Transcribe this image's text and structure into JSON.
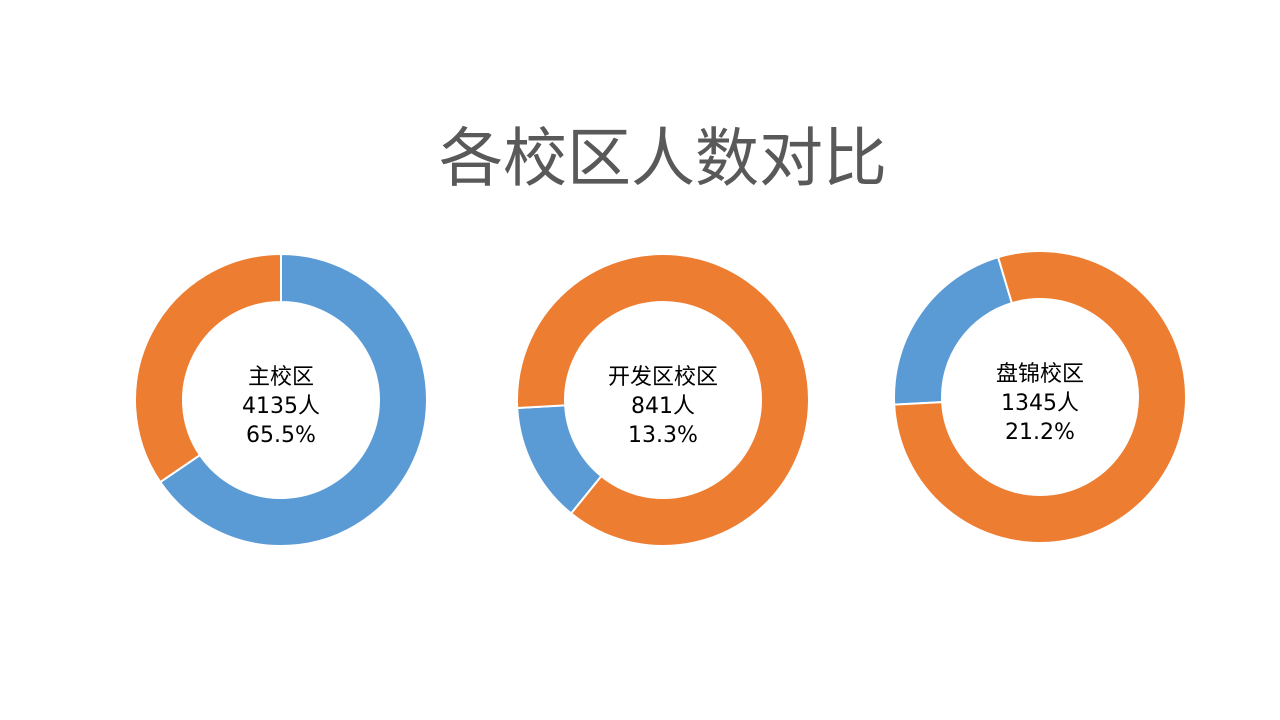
{
  "title": "各校区人数对比",
  "chart_data": [
    {
      "type": "donut",
      "title": "主校区",
      "count": {
        "value": 4135,
        "label": "4135人"
      },
      "values": [
        65.5,
        34.5
      ],
      "value_labels": [
        "65.5%",
        null
      ],
      "colors": [
        "#5b9bd5",
        "#ed7d31"
      ]
    },
    {
      "type": "donut",
      "title": "开发区校区",
      "count": {
        "value": 841,
        "label": "841人"
      },
      "values": [
        13.3,
        86.7
      ],
      "value_labels": [
        "13.3%",
        null
      ],
      "colors": [
        "#5b9bd5",
        "#ed7d31"
      ]
    },
    {
      "type": "donut",
      "title": "盘锦校区",
      "count": {
        "value": 1345,
        "label": "1345人"
      },
      "values": [
        21.2,
        78.8
      ],
      "value_labels": [
        "21.2%",
        null
      ],
      "colors": [
        "#5b9bd5",
        "#ed7d31"
      ]
    }
  ]
}
